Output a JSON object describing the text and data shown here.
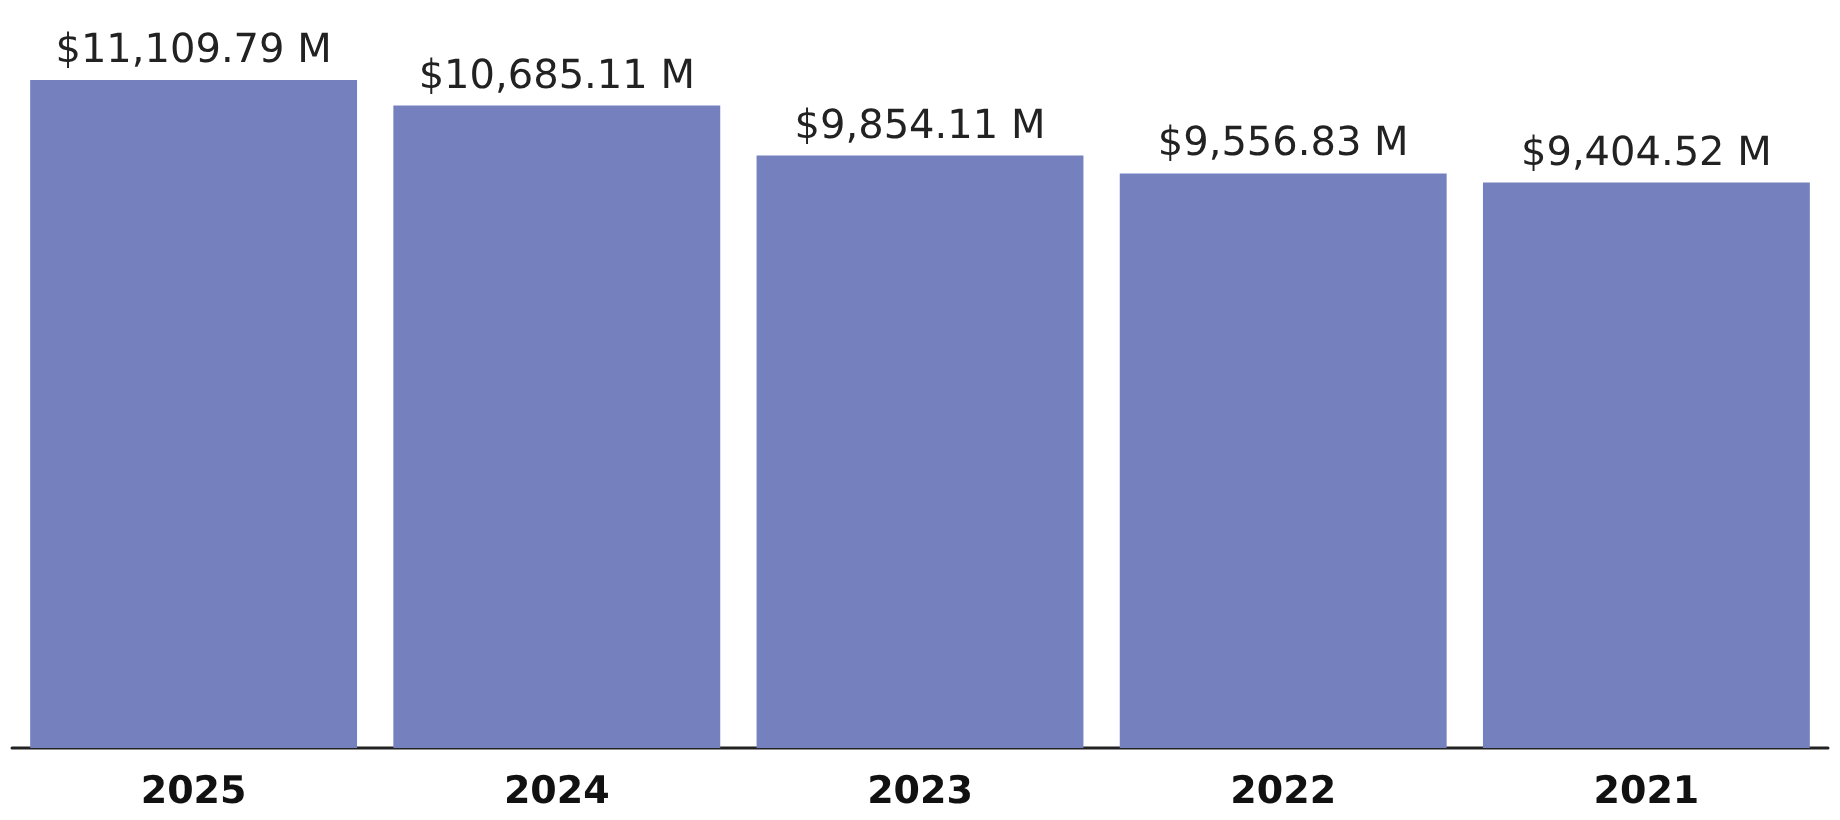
{
  "chart_data": {
    "type": "bar",
    "categories": [
      "2025",
      "2024",
      "2023",
      "2022",
      "2021"
    ],
    "values": [
      11109.79,
      10685.11,
      9854.11,
      9556.83,
      9404.52
    ],
    "value_labels": [
      "$11,109.79 M",
      "$10,685.11 M",
      "$9,854.11 M",
      "$9,556.83 M",
      "$9,404.52 M"
    ],
    "color": "#7580bf"
  }
}
